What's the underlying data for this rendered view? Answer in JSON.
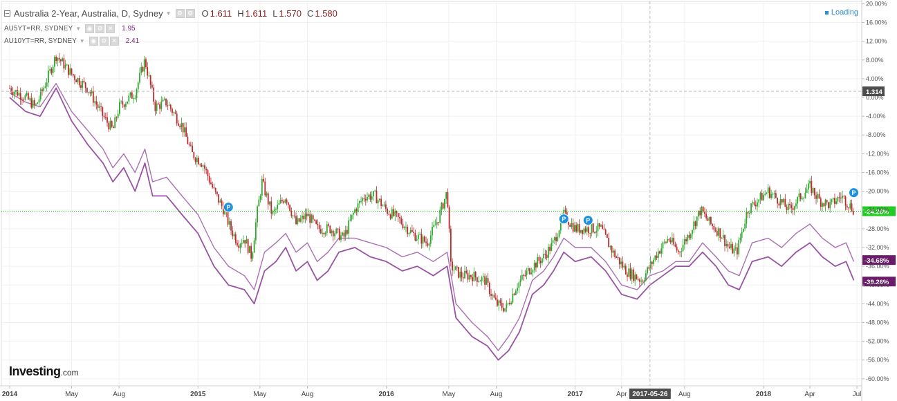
{
  "legend": {
    "main_label": "Australia 2-Year, Australia, D, Sydney",
    "ohlc": [
      {
        "k": "O",
        "v": "1.611"
      },
      {
        "k": "H",
        "v": "1.611"
      },
      {
        "k": "L",
        "v": "1.570"
      },
      {
        "k": "C",
        "v": "1.580"
      }
    ],
    "series": [
      {
        "label": "AU5YT=RR, SYDNEY",
        "value": "1.95"
      },
      {
        "label": "AU10YT=RR, SYDNEY",
        "value": "2.41"
      }
    ]
  },
  "status": "Loading",
  "brand": {
    "name": "Investing",
    "suffix": ".com"
  },
  "colors": {
    "up": "#2ea82e",
    "down": "#c0282b",
    "compare": "#8e3f9a",
    "current_line": "#00c800",
    "crosshair": "#bbbbbb",
    "label_dark": "#4d4d4d",
    "label_green": "#22cc22",
    "label_purple": "#6a1b6a"
  },
  "chart_data": {
    "type": "line",
    "x_range": [
      "2014-01-01",
      "2018-07-01"
    ],
    "y_unit": "%",
    "ylim": [
      -61.5,
      20.5
    ],
    "y_ticks": [
      "20.00%",
      "16.00%",
      "12.00%",
      "8.00%",
      "4.00%",
      "0.00%",
      "-4.00%",
      "-8.00%",
      "-12.00%",
      "-16.00%",
      "-20.00%",
      "-24.00%",
      "-28.00%",
      "-32.00%",
      "-36.00%",
      "-40.00%",
      "-44.00%",
      "-48.00%",
      "-52.00%",
      "-56.00%",
      "-60.00%"
    ],
    "y_tick_values": [
      20,
      16,
      12,
      8,
      4,
      0,
      -4,
      -8,
      -12,
      -16,
      -20,
      -24,
      -28,
      -32,
      -36,
      -40,
      -44,
      -48,
      -52,
      -56,
      -60
    ],
    "x_ticks": [
      {
        "date": "2014-01-01",
        "label": "2014",
        "bold": true
      },
      {
        "date": "2014-05-01",
        "label": "May",
        "bold": false
      },
      {
        "date": "2014-08-01",
        "label": "Aug",
        "bold": false
      },
      {
        "date": "2015-01-01",
        "label": "2015",
        "bold": true
      },
      {
        "date": "2015-05-01",
        "label": "May",
        "bold": false
      },
      {
        "date": "2015-08-01",
        "label": "Aug",
        "bold": false
      },
      {
        "date": "2016-01-01",
        "label": "2016",
        "bold": true
      },
      {
        "date": "2016-05-01",
        "label": "May",
        "bold": false
      },
      {
        "date": "2016-08-01",
        "label": "Aug",
        "bold": false
      },
      {
        "date": "2017-01-01",
        "label": "2017",
        "bold": true
      },
      {
        "date": "2017-04-01",
        "label": "Apr",
        "bold": false
      },
      {
        "date": "2017-08-01",
        "label": "Aug",
        "bold": false
      },
      {
        "date": "2018-01-01",
        "label": "2018",
        "bold": true
      },
      {
        "date": "2018-04-01",
        "label": "Apr",
        "bold": false
      },
      {
        "date": "2018-07-01",
        "label": "Jul",
        "bold": false
      }
    ],
    "crosshair": {
      "date": "2017-05-26",
      "label": "2017-05-26",
      "y": 1.314,
      "y_label": "1.314"
    },
    "current_line": {
      "y": -24.26,
      "label": "-24.26%"
    },
    "end_labels": [
      {
        "y": -34.68,
        "label": "-34.68%"
      },
      {
        "y": -39.26,
        "label": "-39.26%"
      }
    ],
    "markers": [
      {
        "date": "2015-03-01",
        "y": -23.4,
        "label": "P"
      },
      {
        "date": "2016-12-10",
        "y": -25.9,
        "label": "P"
      },
      {
        "date": "2017-01-26",
        "y": -26.2,
        "label": "P"
      },
      {
        "date": "2018-06-25",
        "y": -20.3,
        "label": "P"
      }
    ],
    "candle_path": [
      [
        "2014-01-01",
        2
      ],
      [
        "2014-02-01",
        0
      ],
      [
        "2014-02-20",
        -2
      ],
      [
        "2014-03-15",
        4
      ],
      [
        "2014-04-01",
        9
      ],
      [
        "2014-05-01",
        5
      ],
      [
        "2014-06-01",
        2
      ],
      [
        "2014-07-01",
        -4
      ],
      [
        "2014-07-20",
        -7
      ],
      [
        "2014-08-01",
        -2
      ],
      [
        "2014-09-01",
        1
      ],
      [
        "2014-09-20",
        8
      ],
      [
        "2014-10-10",
        -2
      ],
      [
        "2014-11-01",
        -1
      ],
      [
        "2014-12-01",
        -6
      ],
      [
        "2014-12-20",
        -12
      ],
      [
        "2015-01-10",
        -14
      ],
      [
        "2015-02-01",
        -20
      ],
      [
        "2015-02-20",
        -24
      ],
      [
        "2015-03-05",
        -28
      ],
      [
        "2015-03-20",
        -31
      ],
      [
        "2015-04-01",
        -30
      ],
      [
        "2015-04-15",
        -34
      ],
      [
        "2015-04-25",
        -25
      ],
      [
        "2015-05-05",
        -18
      ],
      [
        "2015-05-25",
        -25
      ],
      [
        "2015-06-20",
        -21
      ],
      [
        "2015-07-10",
        -27
      ],
      [
        "2015-08-01",
        -25
      ],
      [
        "2015-08-20",
        -28
      ],
      [
        "2015-09-15",
        -28
      ],
      [
        "2015-10-10",
        -30
      ],
      [
        "2015-11-01",
        -24
      ],
      [
        "2015-11-20",
        -21
      ],
      [
        "2015-12-10",
        -21
      ],
      [
        "2016-01-01",
        -24
      ],
      [
        "2016-01-25",
        -26
      ],
      [
        "2016-02-20",
        -29
      ],
      [
        "2016-03-20",
        -31
      ],
      [
        "2016-04-10",
        -26
      ],
      [
        "2016-04-28",
        -20
      ],
      [
        "2016-05-05",
        -36
      ],
      [
        "2016-05-25",
        -38
      ],
      [
        "2016-06-15",
        -38
      ],
      [
        "2016-07-10",
        -39
      ],
      [
        "2016-08-01",
        -44
      ],
      [
        "2016-08-20",
        -45
      ],
      [
        "2016-09-10",
        -40
      ],
      [
        "2016-10-10",
        -36
      ],
      [
        "2016-11-01",
        -34
      ],
      [
        "2016-11-20",
        -31
      ],
      [
        "2016-12-10",
        -25
      ],
      [
        "2017-01-01",
        -28
      ],
      [
        "2017-01-25",
        -28
      ],
      [
        "2017-02-20",
        -28
      ],
      [
        "2017-03-15",
        -33
      ],
      [
        "2017-04-10",
        -37
      ],
      [
        "2017-04-25",
        -38
      ],
      [
        "2017-05-10",
        -39
      ],
      [
        "2017-05-26",
        -36
      ],
      [
        "2017-06-10",
        -33
      ],
      [
        "2017-07-01",
        -30
      ],
      [
        "2017-07-20",
        -33
      ],
      [
        "2017-08-10",
        -29
      ],
      [
        "2017-09-01",
        -24
      ],
      [
        "2017-09-20",
        -27
      ],
      [
        "2017-10-10",
        -29
      ],
      [
        "2017-10-25",
        -32
      ],
      [
        "2017-11-10",
        -33
      ],
      [
        "2017-12-01",
        -24
      ],
      [
        "2017-12-20",
        -22
      ],
      [
        "2018-01-10",
        -20
      ],
      [
        "2018-02-01",
        -22
      ],
      [
        "2018-02-20",
        -24
      ],
      [
        "2018-03-15",
        -21
      ],
      [
        "2018-04-01",
        -19
      ],
      [
        "2018-04-20",
        -22
      ],
      [
        "2018-05-10",
        -23
      ],
      [
        "2018-06-01",
        -21
      ],
      [
        "2018-06-25",
        -24
      ]
    ],
    "series": [
      {
        "name": "AU5YT=RR, SYDNEY",
        "points": [
          [
            "2014-01-01",
            0
          ],
          [
            "2014-02-01",
            -3
          ],
          [
            "2014-03-01",
            -4
          ],
          [
            "2014-04-01",
            2
          ],
          [
            "2014-05-01",
            -5
          ],
          [
            "2014-06-01",
            -10
          ],
          [
            "2014-07-01",
            -14
          ],
          [
            "2014-07-20",
            -18
          ],
          [
            "2014-08-10",
            -15
          ],
          [
            "2014-09-01",
            -20
          ],
          [
            "2014-09-20",
            -14
          ],
          [
            "2014-10-05",
            -21
          ],
          [
            "2014-11-01",
            -21
          ],
          [
            "2014-12-01",
            -25
          ],
          [
            "2015-01-01",
            -29
          ],
          [
            "2015-02-01",
            -36
          ],
          [
            "2015-03-01",
            -40
          ],
          [
            "2015-04-01",
            -41
          ],
          [
            "2015-04-20",
            -44
          ],
          [
            "2015-05-10",
            -37
          ],
          [
            "2015-06-01",
            -35
          ],
          [
            "2015-06-20",
            -32
          ],
          [
            "2015-07-10",
            -37
          ],
          [
            "2015-08-01",
            -35
          ],
          [
            "2015-08-20",
            -39
          ],
          [
            "2015-09-10",
            -37
          ],
          [
            "2015-10-01",
            -33
          ],
          [
            "2015-11-01",
            -32
          ],
          [
            "2015-12-01",
            -34
          ],
          [
            "2016-01-01",
            -35
          ],
          [
            "2016-02-01",
            -37
          ],
          [
            "2016-03-01",
            -36
          ],
          [
            "2016-04-01",
            -38
          ],
          [
            "2016-04-28",
            -36
          ],
          [
            "2016-05-15",
            -47
          ],
          [
            "2016-06-15",
            -51
          ],
          [
            "2016-07-15",
            -53
          ],
          [
            "2016-08-05",
            -56
          ],
          [
            "2016-08-25",
            -54
          ],
          [
            "2016-09-15",
            -50
          ],
          [
            "2016-10-10",
            -42
          ],
          [
            "2016-11-01",
            -40
          ],
          [
            "2016-11-20",
            -37
          ],
          [
            "2016-12-10",
            -33
          ],
          [
            "2017-01-01",
            -35
          ],
          [
            "2017-02-01",
            -34
          ],
          [
            "2017-03-01",
            -37
          ],
          [
            "2017-04-01",
            -42
          ],
          [
            "2017-05-01",
            -43
          ],
          [
            "2017-05-26",
            -40
          ],
          [
            "2017-06-20",
            -38
          ],
          [
            "2017-07-15",
            -36
          ],
          [
            "2017-08-10",
            -36
          ],
          [
            "2017-09-05",
            -33
          ],
          [
            "2017-10-01",
            -36
          ],
          [
            "2017-10-25",
            -40
          ],
          [
            "2017-11-15",
            -41
          ],
          [
            "2017-12-10",
            -35
          ],
          [
            "2018-01-10",
            -34
          ],
          [
            "2018-02-05",
            -36
          ],
          [
            "2018-03-05",
            -33
          ],
          [
            "2018-04-01",
            -31
          ],
          [
            "2018-04-25",
            -34
          ],
          [
            "2018-05-20",
            -36
          ],
          [
            "2018-06-10",
            -35
          ],
          [
            "2018-06-25",
            -39
          ]
        ]
      },
      {
        "name": "AU10YT=RR, SYDNEY",
        "points": [
          [
            "2014-01-01",
            1
          ],
          [
            "2014-02-01",
            -1
          ],
          [
            "2014-03-01",
            -2
          ],
          [
            "2014-04-01",
            3
          ],
          [
            "2014-05-01",
            -3
          ],
          [
            "2014-06-01",
            -7
          ],
          [
            "2014-07-01",
            -11
          ],
          [
            "2014-07-20",
            -15
          ],
          [
            "2014-08-10",
            -12
          ],
          [
            "2014-09-01",
            -16
          ],
          [
            "2014-09-20",
            -11
          ],
          [
            "2014-10-05",
            -18
          ],
          [
            "2014-11-01",
            -17
          ],
          [
            "2014-12-01",
            -21
          ],
          [
            "2015-01-01",
            -25
          ],
          [
            "2015-02-01",
            -32
          ],
          [
            "2015-03-01",
            -36
          ],
          [
            "2015-04-01",
            -38
          ],
          [
            "2015-04-20",
            -41
          ],
          [
            "2015-05-10",
            -33
          ],
          [
            "2015-06-01",
            -31
          ],
          [
            "2015-06-20",
            -29
          ],
          [
            "2015-07-10",
            -33
          ],
          [
            "2015-08-01",
            -31
          ],
          [
            "2015-08-20",
            -35
          ],
          [
            "2015-09-10",
            -33
          ],
          [
            "2015-10-01",
            -30
          ],
          [
            "2015-11-01",
            -30
          ],
          [
            "2015-12-01",
            -31
          ],
          [
            "2016-01-01",
            -32
          ],
          [
            "2016-02-01",
            -34
          ],
          [
            "2016-03-01",
            -33
          ],
          [
            "2016-04-01",
            -35
          ],
          [
            "2016-04-28",
            -33
          ],
          [
            "2016-05-15",
            -44
          ],
          [
            "2016-06-15",
            -48
          ],
          [
            "2016-07-15",
            -51
          ],
          [
            "2016-08-05",
            -54
          ],
          [
            "2016-08-25",
            -51
          ],
          [
            "2016-09-15",
            -47
          ],
          [
            "2016-10-10",
            -39
          ],
          [
            "2016-11-01",
            -37
          ],
          [
            "2016-11-20",
            -34
          ],
          [
            "2016-12-10",
            -30
          ],
          [
            "2017-01-01",
            -32
          ],
          [
            "2017-02-01",
            -32
          ],
          [
            "2017-03-01",
            -35
          ],
          [
            "2017-04-01",
            -40
          ],
          [
            "2017-05-01",
            -41
          ],
          [
            "2017-05-26",
            -38
          ],
          [
            "2017-06-20",
            -37
          ],
          [
            "2017-07-15",
            -35
          ],
          [
            "2017-08-10",
            -35
          ],
          [
            "2017-09-05",
            -31
          ],
          [
            "2017-10-01",
            -34
          ],
          [
            "2017-10-25",
            -37
          ],
          [
            "2017-11-15",
            -38
          ],
          [
            "2017-12-10",
            -31
          ],
          [
            "2018-01-10",
            -30
          ],
          [
            "2018-02-05",
            -32
          ],
          [
            "2018-03-05",
            -29
          ],
          [
            "2018-04-01",
            -27
          ],
          [
            "2018-04-25",
            -30
          ],
          [
            "2018-05-20",
            -32
          ],
          [
            "2018-06-10",
            -31
          ],
          [
            "2018-06-25",
            -35
          ]
        ]
      }
    ]
  }
}
